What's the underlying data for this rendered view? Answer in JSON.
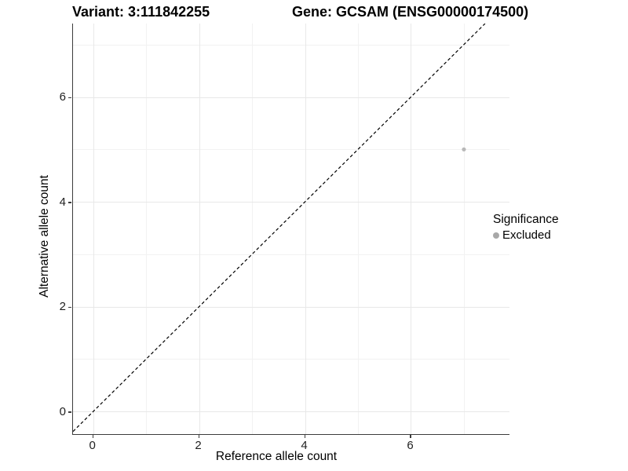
{
  "titles": {
    "variant": "Variant: 3:111842255",
    "gene": "Gene: GCSAM (ENSG00000174500)"
  },
  "legend": {
    "title": "Significance",
    "items": [
      {
        "label": "Excluded",
        "color": "#a8a8a8"
      }
    ]
  },
  "colors": {
    "point": "#b8b8b8",
    "grid_major": "#e8e8e8",
    "grid_minor": "#f2f2f2",
    "axis_line": "#3c3c3c",
    "reference_line": "#000000"
  },
  "chart_data": {
    "type": "scatter",
    "title": "Variant: 3:111842255 | Gene: GCSAM (ENSG00000174500)",
    "xlabel": "Reference allele count",
    "ylabel": "Alternative allele count",
    "xlim": [
      -0.38,
      7.86
    ],
    "ylim": [
      -0.43,
      7.4
    ],
    "x_major_ticks": [
      0,
      2,
      4,
      6
    ],
    "y_major_ticks": [
      0,
      2,
      4,
      6
    ],
    "x_minor_ticks": [
      1,
      3,
      5,
      7
    ],
    "y_minor_ticks": [
      1,
      3,
      5,
      7
    ],
    "x_tick_labels": [
      "0",
      "2",
      "4",
      "6"
    ],
    "y_tick_labels": [
      "0",
      "2",
      "4",
      "6"
    ],
    "grid": true,
    "legend_position": "right",
    "series": [
      {
        "name": "Excluded",
        "color": "#b8b8b8",
        "points": [
          {
            "x": 7,
            "y": 5
          }
        ]
      }
    ],
    "reference_line": {
      "kind": "abline",
      "slope": 1,
      "intercept": 0,
      "linetype": "dashed",
      "color": "#000000"
    }
  }
}
